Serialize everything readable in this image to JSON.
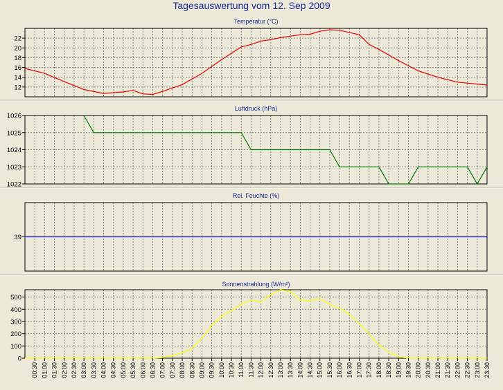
{
  "title": "Tagesauswertung vom 12. Sep 2009",
  "colors": {
    "background": "#ece9d8",
    "title_text": "#1a2b9a",
    "grid": "#808080",
    "temperature": "#e00000",
    "pressure": "#007800",
    "humidity": "#0000c8",
    "radiation": "#ffff00"
  },
  "x_labels": [
    "00:30",
    "01:00",
    "01:30",
    "02:00",
    "02:30",
    "03:00",
    "03:30",
    "04:00",
    "04:30",
    "05:00",
    "05:30",
    "06:00",
    "06:30",
    "07:00",
    "07:30",
    "08:00",
    "08:30",
    "09:00",
    "09:30",
    "10:00",
    "10:30",
    "11:00",
    "11:30",
    "12:00",
    "12:30",
    "13:00",
    "13:30",
    "14:00",
    "14:30",
    "15:00",
    "15:30",
    "16:00",
    "16:30",
    "17:00",
    "17:30",
    "18:00",
    "18:30",
    "19:00",
    "19:30",
    "20:00",
    "20:30",
    "21:00",
    "21:30",
    "22:00",
    "22:30",
    "23:00",
    "23:30"
  ],
  "chart_data": [
    {
      "type": "line",
      "title": "Temperatur (°C)",
      "ylim": [
        10,
        24
      ],
      "yticks": [
        12,
        14,
        16,
        18,
        20,
        22
      ],
      "grid": true,
      "series": [
        {
          "color": "#e00000",
          "x": [
            "00:00",
            "01:00",
            "02:00",
            "03:00",
            "04:00",
            "05:00",
            "05:30",
            "06:00",
            "06:30",
            "07:00",
            "08:00",
            "09:00",
            "10:00",
            "11:00",
            "11:30",
            "12:00",
            "12:30",
            "13:00",
            "14:00",
            "14:30",
            "15:00",
            "15:30",
            "16:00",
            "17:00",
            "17:30",
            "18:00",
            "19:00",
            "20:00",
            "21:00",
            "22:00",
            "23:00",
            "23:30"
          ],
          "values": [
            15.8,
            14.8,
            13.1,
            11.5,
            10.7,
            11.0,
            11.3,
            10.6,
            10.5,
            11.1,
            12.5,
            14.8,
            17.6,
            20.2,
            20.7,
            21.4,
            21.7,
            22.1,
            22.7,
            22.8,
            23.4,
            23.7,
            23.6,
            22.7,
            20.7,
            19.7,
            17.4,
            15.3,
            14.0,
            13.0,
            12.6,
            12.4
          ]
        }
      ]
    },
    {
      "type": "line",
      "title": "Luftdruck (hPa)",
      "ylim": [
        1022,
        1026
      ],
      "yticks": [
        1022,
        1023,
        1024,
        1025,
        1026
      ],
      "grid": true,
      "series": [
        {
          "color": "#007800",
          "x": [
            "03:00",
            "03:30",
            "11:00",
            "11:30",
            "15:30",
            "16:00",
            "18:00",
            "18:30",
            "19:30",
            "20:00",
            "22:30",
            "23:00",
            "23:30"
          ],
          "values": [
            1026,
            1025,
            1025,
            1024,
            1024,
            1023,
            1023,
            1022,
            1022,
            1023,
            1023,
            1022,
            1023
          ]
        }
      ]
    },
    {
      "type": "line",
      "title": "Rel. Feuchte (%)",
      "ylim": [
        30,
        48
      ],
      "yticks": [
        39
      ],
      "grid": true,
      "series": [
        {
          "color": "#0000c8",
          "x": [
            "00:00",
            "23:30"
          ],
          "values": [
            39,
            39
          ]
        }
      ]
    },
    {
      "type": "line",
      "title": "Sonnenstrahlung (W/m²)",
      "ylim": [
        0,
        560
      ],
      "yticks": [
        0,
        100,
        200,
        300,
        400,
        500
      ],
      "grid": true,
      "series": [
        {
          "color": "#ffff00",
          "x": [
            "00:00",
            "06:30",
            "07:00",
            "07:30",
            "08:00",
            "08:30",
            "09:00",
            "09:30",
            "10:00",
            "10:30",
            "11:00",
            "11:30",
            "12:00",
            "12:30",
            "13:00",
            "13:30",
            "14:00",
            "14:30",
            "15:00",
            "15:30",
            "16:00",
            "16:30",
            "17:00",
            "17:30",
            "18:00",
            "18:30",
            "19:00",
            "19:30",
            "23:30"
          ],
          "values": [
            0,
            0,
            5,
            20,
            45,
            80,
            160,
            270,
            340,
            390,
            440,
            475,
            460,
            520,
            560,
            545,
            475,
            470,
            490,
            440,
            410,
            360,
            280,
            200,
            110,
            50,
            10,
            0,
            0
          ]
        }
      ]
    }
  ]
}
